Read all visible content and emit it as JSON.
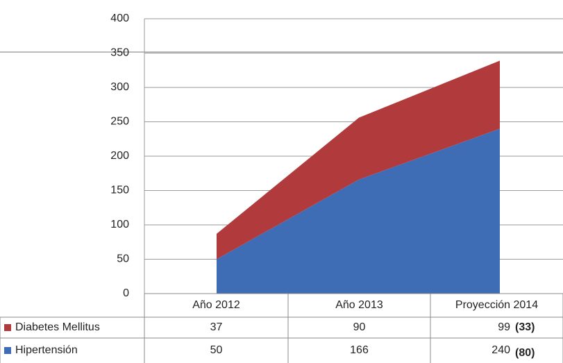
{
  "chart_data": {
    "type": "stacked_area",
    "categories": [
      "Año 2012",
      "Año 2013",
      "Proyección 2014"
    ],
    "series": [
      {
        "name": "Diabetes Mellitus",
        "color": "#b13b3c",
        "values": [
          37,
          90,
          99
        ]
      },
      {
        "name": "Hipertensión",
        "color": "#3e6db5",
        "values": [
          50,
          166,
          240
        ]
      }
    ],
    "annotations": [
      "(33)",
      "(80)"
    ],
    "ylim": [
      0,
      400
    ],
    "yticks": [
      0,
      50,
      100,
      150,
      200,
      250,
      300,
      350,
      400
    ],
    "grid": true
  }
}
